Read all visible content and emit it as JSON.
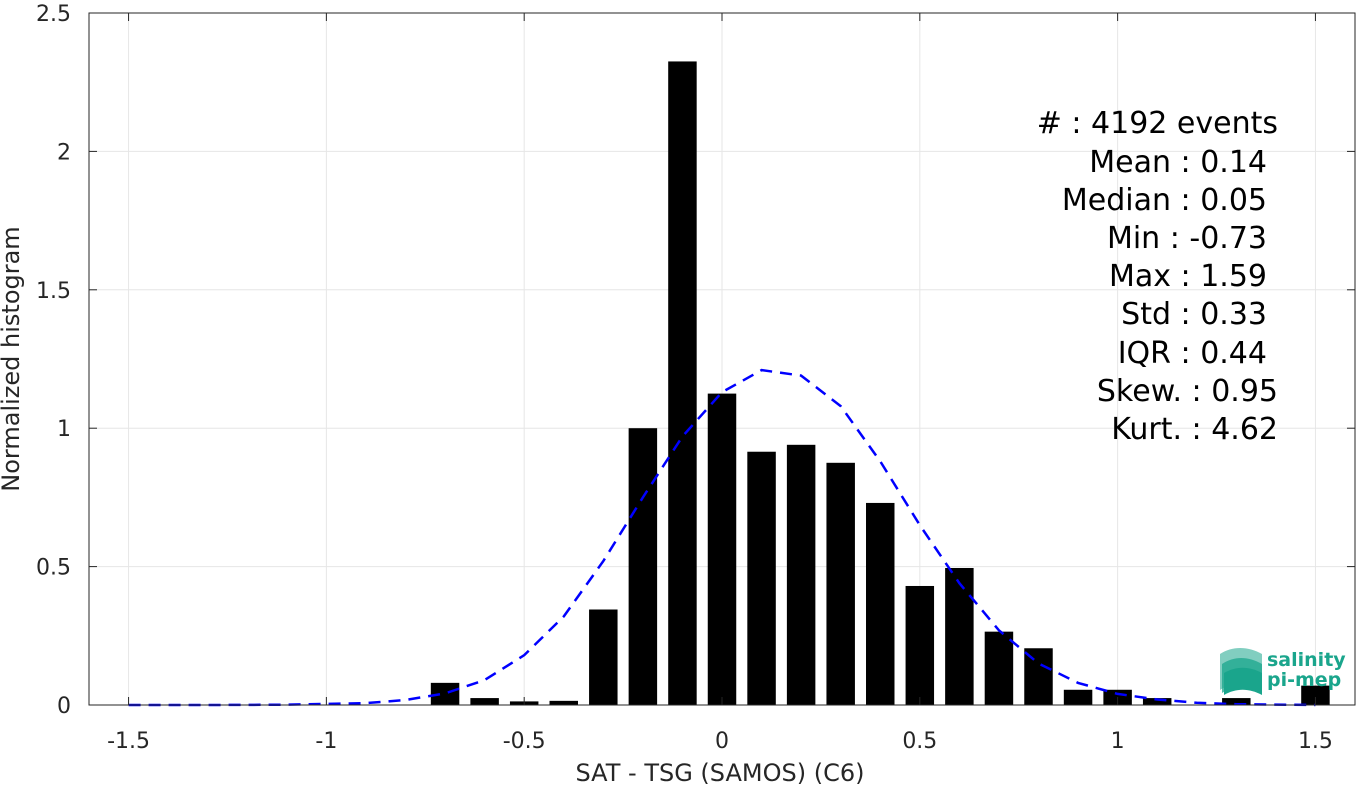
{
  "chart_data": {
    "type": "bar",
    "xlabel": "SAT - TSG (SAMOS) (C6)",
    "ylabel": "Normalized histogram",
    "xlim": [
      -1.6,
      1.6
    ],
    "ylim": [
      0,
      2.5
    ],
    "grid": true,
    "x_ticks": [
      -1.5,
      -1,
      -0.5,
      0,
      0.5,
      1,
      1.5
    ],
    "x_tick_labels": [
      "-1.5",
      "-1",
      "-0.5",
      "0",
      "0.5",
      "1",
      "1.5"
    ],
    "y_ticks": [
      0,
      0.5,
      1,
      1.5,
      2,
      2.5
    ],
    "y_tick_labels": [
      "0",
      "0.5",
      "1",
      "1.5",
      "2",
      "2.5"
    ],
    "bin_width": 0.1,
    "bar_fill": "#000000",
    "bars": [
      {
        "x": -0.7,
        "y": 0.08
      },
      {
        "x": -0.6,
        "y": 0.025
      },
      {
        "x": -0.5,
        "y": 0.013
      },
      {
        "x": -0.4,
        "y": 0.015
      },
      {
        "x": -0.3,
        "y": 0.345
      },
      {
        "x": -0.2,
        "y": 1.0
      },
      {
        "x": -0.1,
        "y": 2.325
      },
      {
        "x": 0.0,
        "y": 1.125
      },
      {
        "x": 0.1,
        "y": 0.915
      },
      {
        "x": 0.2,
        "y": 0.94
      },
      {
        "x": 0.3,
        "y": 0.875
      },
      {
        "x": 0.4,
        "y": 0.73
      },
      {
        "x": 0.5,
        "y": 0.43
      },
      {
        "x": 0.6,
        "y": 0.495
      },
      {
        "x": 0.7,
        "y": 0.265
      },
      {
        "x": 0.8,
        "y": 0.205
      },
      {
        "x": 0.9,
        "y": 0.055
      },
      {
        "x": 1.0,
        "y": 0.055
      },
      {
        "x": 1.1,
        "y": 0.025
      },
      {
        "x": 1.3,
        "y": 0.025
      },
      {
        "x": 1.5,
        "y": 0.07
      }
    ],
    "fit_curve": {
      "style": "dashed",
      "color": "#0000ff",
      "points": [
        {
          "x": -1.5,
          "y": 0.0
        },
        {
          "x": -1.3,
          "y": 0.0
        },
        {
          "x": -1.1,
          "y": 0.001
        },
        {
          "x": -0.9,
          "y": 0.007
        },
        {
          "x": -0.8,
          "y": 0.018
        },
        {
          "x": -0.7,
          "y": 0.042
        },
        {
          "x": -0.6,
          "y": 0.09
        },
        {
          "x": -0.5,
          "y": 0.18
        },
        {
          "x": -0.4,
          "y": 0.32
        },
        {
          "x": -0.3,
          "y": 0.52
        },
        {
          "x": -0.2,
          "y": 0.75
        },
        {
          "x": -0.1,
          "y": 0.97
        },
        {
          "x": 0.0,
          "y": 1.13
        },
        {
          "x": 0.1,
          "y": 1.21
        },
        {
          "x": 0.2,
          "y": 1.19
        },
        {
          "x": 0.3,
          "y": 1.08
        },
        {
          "x": 0.4,
          "y": 0.88
        },
        {
          "x": 0.5,
          "y": 0.65
        },
        {
          "x": 0.6,
          "y": 0.44
        },
        {
          "x": 0.7,
          "y": 0.27
        },
        {
          "x": 0.8,
          "y": 0.15
        },
        {
          "x": 0.9,
          "y": 0.08
        },
        {
          "x": 1.0,
          "y": 0.04
        },
        {
          "x": 1.1,
          "y": 0.02
        },
        {
          "x": 1.2,
          "y": 0.008
        },
        {
          "x": 1.3,
          "y": 0.003
        },
        {
          "x": 1.5,
          "y": 0.0
        }
      ]
    },
    "annotations": [
      "#  : 4192 events",
      "Mean : 0.14",
      "Median : 0.05",
      "Min : -0.73",
      "Max : 1.59",
      "Std : 0.33",
      "IQR : 0.44",
      "Skew. : 0.95",
      "Kurt. : 4.62"
    ]
  },
  "logo": {
    "line1": "salinity",
    "line2": "pi-mep",
    "color": "#1aa58c"
  }
}
